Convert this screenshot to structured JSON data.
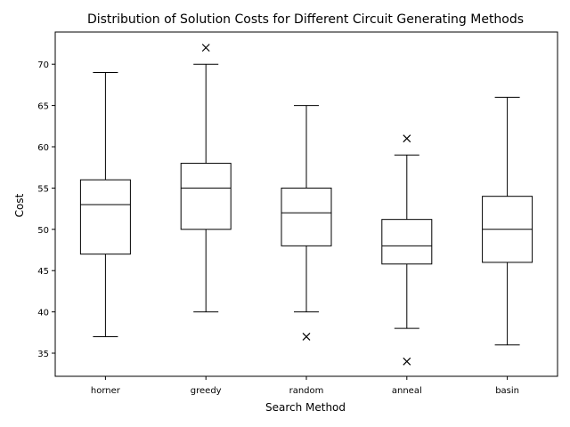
{
  "chart_data": {
    "type": "box",
    "title": "Distribution of Solution Costs for Different Circuit Generating Methods",
    "xlabel": "Search Method",
    "ylabel": "Cost",
    "ylim": [
      32.2,
      73.9
    ],
    "yticks": [
      35,
      40,
      45,
      50,
      55,
      60,
      65,
      70
    ],
    "grid": false,
    "outlier_marker": "x",
    "color": "#000000",
    "categories": [
      "horner",
      "greedy",
      "random",
      "anneal",
      "basin"
    ],
    "boxes": [
      {
        "label": "horner",
        "whisker_low": 37,
        "q1": 47,
        "median": 53,
        "q3": 56,
        "whisker_high": 69,
        "outliers": []
      },
      {
        "label": "greedy",
        "whisker_low": 40,
        "q1": 50,
        "median": 55,
        "q3": 58,
        "whisker_high": 70,
        "outliers": [
          72
        ]
      },
      {
        "label": "random",
        "whisker_low": 40,
        "q1": 48,
        "median": 52,
        "q3": 55,
        "whisker_high": 65,
        "outliers": [
          37
        ]
      },
      {
        "label": "anneal",
        "whisker_low": 38,
        "q1": 45.8,
        "median": 48,
        "q3": 51.2,
        "whisker_high": 59,
        "outliers": [
          34,
          61
        ]
      },
      {
        "label": "basin",
        "whisker_low": 36,
        "q1": 46,
        "median": 50,
        "q3": 54,
        "whisker_high": 66,
        "outliers": []
      }
    ]
  }
}
